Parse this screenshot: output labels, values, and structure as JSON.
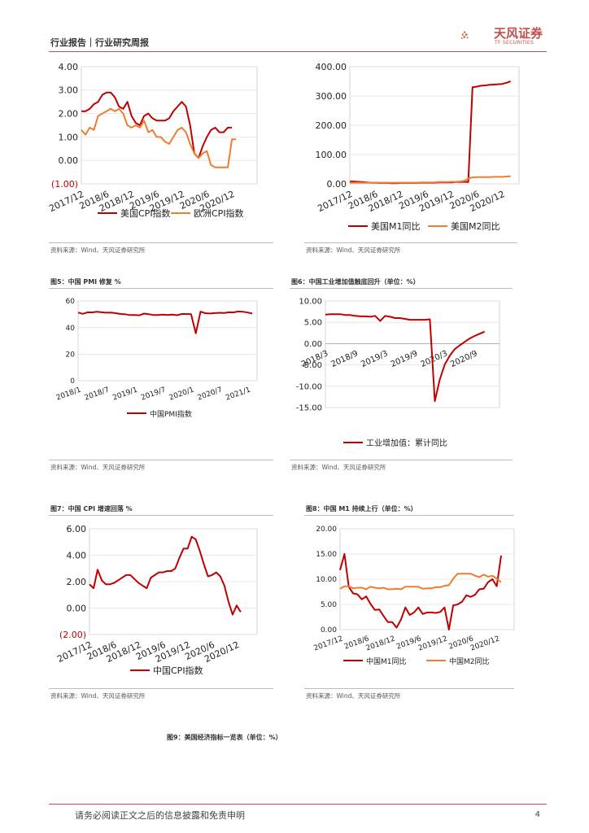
{
  "header": {
    "report_type": "行业报告｜行业研究周报"
  },
  "logo": {
    "name": "天风证券",
    "sub": "TF SECURITIES"
  },
  "colors": {
    "red": "#c00000",
    "orange": "#ed7d31",
    "accent": "#c0504d"
  },
  "source_text": "资料来源：Wind、天风证券研究所",
  "charts": [
    {
      "id": "us-eu-cpi",
      "caption": "",
      "chart_data": {
        "type": "line",
        "ylim": [
          -1,
          4
        ],
        "y_ticks": [
          "4.00",
          "3.00",
          "2.00",
          "1.00",
          "0.00",
          "(1.00)"
        ],
        "x_ticks": [
          "2017/12",
          "2018/6",
          "2018/12",
          "2019/6",
          "2019/12",
          "2020/6",
          "2020/12"
        ],
        "x_range": [
          0,
          42
        ],
        "x_tick_pos": [
          0,
          6,
          12,
          18,
          24,
          30,
          36
        ],
        "series": [
          {
            "name": "美国CPI指数",
            "color": "#c00000",
            "values": [
              2.1,
              2.1,
              2.2,
              2.4,
              2.5,
              2.8,
              2.9,
              2.9,
              2.7,
              2.3,
              2.2,
              2.5,
              1.9,
              1.6,
              1.5,
              1.9,
              2.0,
              1.8,
              1.7,
              1.7,
              1.7,
              1.8,
              2.1,
              2.3,
              2.5,
              2.3,
              1.5,
              0.3,
              0.1,
              0.6,
              1.0,
              1.3,
              1.4,
              1.2,
              1.2,
              1.4,
              1.4
            ]
          },
          {
            "name": "欧洲CPI指数",
            "color": "#ed7d31",
            "values": [
              1.3,
              1.1,
              1.4,
              1.3,
              1.9,
              2.0,
              2.1,
              2.2,
              2.1,
              2.2,
              2.0,
              1.5,
              1.4,
              1.5,
              1.4,
              1.7,
              1.2,
              1.3,
              1.0,
              1.0,
              0.8,
              0.7,
              1.0,
              1.3,
              1.4,
              1.2,
              0.7,
              0.3,
              0.1,
              0.3,
              0.4,
              -0.2,
              -0.3,
              -0.3,
              -0.3,
              -0.3,
              0.9,
              0.9
            ]
          }
        ]
      }
    },
    {
      "id": "us-m1-m2",
      "caption": "",
      "chart_data": {
        "type": "line",
        "ylim": [
          0,
          400
        ],
        "y_ticks": [
          "400.00",
          "300.00",
          "200.00",
          "100.00",
          "0.00"
        ],
        "x_ticks": [
          "2017/12",
          "2018/6",
          "2018/12",
          "2019/6",
          "2019/12",
          "2020/6",
          "2020/12"
        ],
        "x_range": [
          0,
          40
        ],
        "x_tick_pos": [
          0,
          6,
          12,
          18,
          24,
          30,
          36
        ],
        "series": [
          {
            "name": "美国M1同比",
            "color": "#c00000",
            "values": [
              8,
              8,
              7,
              6,
              5,
              4,
              4,
              3,
              3,
              3,
              2,
              2,
              3,
              3,
              3,
              3,
              3,
              4,
              4,
              4,
              4,
              5,
              5,
              5,
              5,
              6,
              6,
              7,
              6,
              330,
              332,
              335,
              336,
              338,
              339,
              340,
              341,
              345,
              350
            ]
          },
          {
            "name": "美国M2同比",
            "color": "#ed7d31",
            "values": [
              4,
              4,
              4,
              4,
              4,
              4,
              4,
              4,
              4,
              4,
              4,
              4,
              4,
              4,
              4,
              4,
              4,
              5,
              5,
              5,
              5,
              6,
              6,
              6,
              7,
              7,
              8,
              10,
              18,
              22,
              23,
              23,
              23,
              23,
              24,
              24,
              24,
              25,
              26
            ]
          }
        ]
      }
    },
    {
      "id": "china-pmi",
      "caption": "图5：中国 PMI 修复 %",
      "chart_data": {
        "type": "line",
        "ylim": [
          0,
          60
        ],
        "y_ticks": [
          "60",
          "40",
          "20",
          "0"
        ],
        "x_ticks": [
          "2018/1",
          "2018/7",
          "2019/1",
          "2019/7",
          "2020/1",
          "2020/7",
          "2021/1"
        ],
        "x_range": [
          0,
          38
        ],
        "x_tick_pos": [
          0,
          6,
          12,
          18,
          24,
          30,
          36
        ],
        "series": [
          {
            "name": "中国PMI指数",
            "color": "#c00000",
            "values": [
              51.3,
              50.3,
              51.5,
              51.4,
              51.9,
              51.5,
              51.2,
              51.3,
              50.8,
              50.2,
              50.0,
              49.4,
              49.5,
              49.2,
              50.5,
              50.1,
              49.4,
              49.4,
              49.7,
              49.5,
              49.8,
              49.3,
              50.2,
              50.2,
              50.0,
              35.7,
              52.0,
              50.8,
              50.6,
              50.9,
              51.1,
              51.0,
              51.5,
              51.4,
              52.1,
              51.9,
              51.3,
              50.6
            ]
          }
        ]
      }
    },
    {
      "id": "china-industrial",
      "caption": "图6：中国工业增加值触底回升（单位：%）",
      "chart_data": {
        "type": "line",
        "ylim": [
          -15,
          10
        ],
        "y_ticks": [
          "10.00",
          "5.00",
          "0.00",
          "-5.00",
          "-10.00",
          "-15.00"
        ],
        "x_ticks": [
          "2018/3",
          "2018/9",
          "2019/3",
          "2019/9",
          "2020/3",
          "2020/9"
        ],
        "x_range": [
          0,
          35
        ],
        "x_tick_pos": [
          0,
          6,
          12,
          18,
          24,
          30
        ],
        "series": [
          {
            "name": "工业增加值：累计同比",
            "color": "#c00000",
            "values": [
              6.8,
              6.9,
              6.9,
              6.9,
              6.7,
              6.7,
              6.5,
              6.4,
              6.4,
              6.3,
              6.5,
              5.3,
              6.5,
              6.3,
              6.0,
              6.0,
              5.8,
              5.6,
              5.6,
              5.6,
              5.6,
              5.7,
              -13.5,
              -8.4,
              -4.9,
              -2.8,
              -1.3,
              -0.4,
              0.4,
              1.2,
              1.8,
              2.3,
              2.8
            ]
          }
        ]
      }
    },
    {
      "id": "china-cpi",
      "caption": "图7：中国 CPI 增速回落 %",
      "chart_data": {
        "type": "line",
        "ylim": [
          -2,
          6
        ],
        "y_ticks": [
          "6.00",
          "4.00",
          "2.00",
          "0.00",
          "(2.00)"
        ],
        "x_ticks": [
          "2017/12",
          "2018/6",
          "2018/12",
          "2019/6",
          "2019/12",
          "2020/6",
          "2020/12"
        ],
        "x_range": [
          0,
          41
        ],
        "x_tick_pos": [
          0,
          6,
          12,
          18,
          24,
          30,
          36
        ],
        "series": [
          {
            "name": "中国CPI指数",
            "color": "#c00000",
            "values": [
              1.8,
              1.5,
              2.9,
              2.1,
              1.8,
              1.8,
              1.9,
              2.1,
              2.3,
              2.5,
              2.5,
              2.2,
              1.9,
              1.7,
              1.5,
              2.3,
              2.5,
              2.7,
              2.7,
              2.8,
              2.8,
              3.0,
              3.8,
              4.5,
              4.5,
              5.4,
              5.2,
              4.3,
              3.3,
              2.4,
              2.5,
              2.7,
              2.4,
              1.7,
              0.5,
              -0.5,
              0.2,
              -0.3
            ]
          }
        ]
      }
    },
    {
      "id": "china-m1-m2",
      "caption": "图8：中国 M1 持续上行（单位：%）",
      "chart_data": {
        "type": "line",
        "ylim": [
          0,
          20
        ],
        "y_ticks": [
          "20.00",
          "15.00",
          "10.00",
          "5.00",
          "0.00"
        ],
        "x_ticks": [
          "2017/12",
          "2018/6",
          "2018/12",
          "2019/6",
          "2019/12",
          "2020/6",
          "2020/12"
        ],
        "x_range": [
          0,
          40
        ],
        "x_tick_pos": [
          0,
          6,
          12,
          18,
          24,
          30,
          36
        ],
        "series": [
          {
            "name": "中国M1同比",
            "color": "#c00000",
            "values": [
              11.8,
              15.0,
              8.5,
              7.2,
              7.0,
              6.0,
              6.6,
              5.1,
              3.9,
              4.0,
              2.7,
              1.5,
              1.5,
              0.4,
              2.0,
              4.4,
              2.9,
              3.4,
              4.4,
              3.1,
              3.4,
              3.4,
              3.3,
              3.5,
              4.4,
              0.0,
              4.8,
              5.0,
              5.5,
              6.8,
              6.5,
              6.9,
              8.0,
              8.1,
              9.4,
              10.0,
              8.6,
              14.7
            ]
          },
          {
            "name": "中国M2同比",
            "color": "#ed7d31",
            "values": [
              8.1,
              8.6,
              8.6,
              8.2,
              8.3,
              8.3,
              8.0,
              8.5,
              8.3,
              8.2,
              8.3,
              8.0,
              8.0,
              8.1,
              8.0,
              8.5,
              8.5,
              8.5,
              8.5,
              8.1,
              8.2,
              8.2,
              8.4,
              8.4,
              8.7,
              8.8,
              10.1,
              11.1,
              11.1,
              11.1,
              11.1,
              10.7,
              10.4,
              10.9,
              10.5,
              10.7,
              10.1,
              9.4
            ]
          }
        ]
      }
    }
  ],
  "figure9_caption": "图9：美国经济指标一览表（单位：%）",
  "footer": {
    "disclaimer": "请务必阅读正文之后的信息披露和免责申明",
    "page": "4"
  }
}
